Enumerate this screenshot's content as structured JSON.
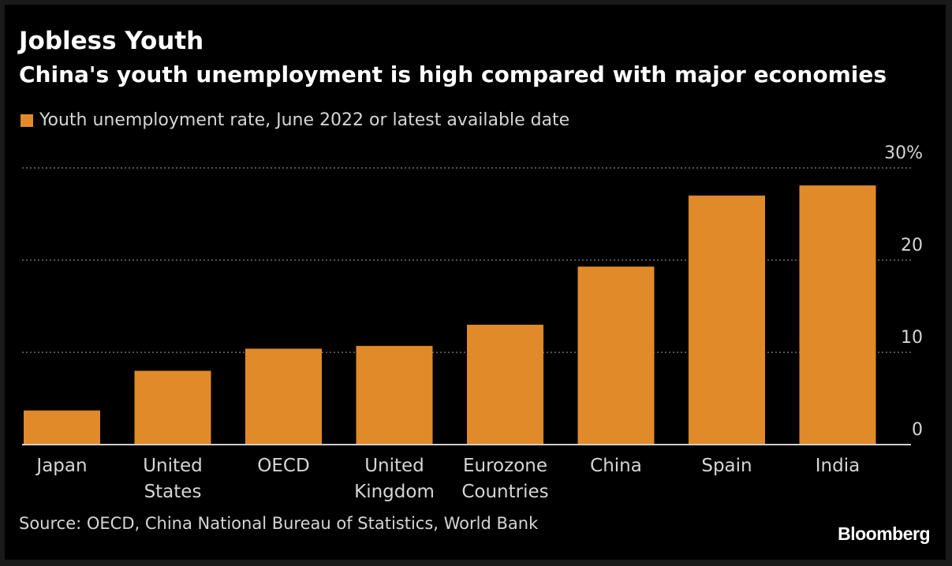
{
  "header": {
    "title": "Jobless Youth",
    "subtitle": "China's youth unemployment is high compared with major economies"
  },
  "chart_data": {
    "type": "bar",
    "categories": [
      [
        "Japan"
      ],
      [
        "United",
        "States"
      ],
      [
        "OECD"
      ],
      [
        "United",
        "Kingdom"
      ],
      [
        "Eurozone",
        "Countries"
      ],
      [
        "China"
      ],
      [
        "Spain"
      ],
      [
        "India"
      ]
    ],
    "series": [
      {
        "name": "Youth unemployment rate, June 2022 or latest available date",
        "values": [
          3.7,
          8.0,
          10.4,
          10.7,
          13.0,
          19.3,
          27.0,
          28.1
        ]
      }
    ],
    "ylim": [
      0,
      30
    ],
    "yticks": [
      0,
      10,
      20,
      30
    ],
    "ytick_labels": [
      "0",
      "10",
      "20",
      "30%"
    ],
    "y_axis_side": "right",
    "grid": true,
    "legend_position": "top-left",
    "title": "Jobless Youth",
    "subtitle": "China's youth unemployment is high compared with major economies",
    "xlabel": "",
    "ylabel": ""
  },
  "footer": {
    "source": "Source: OECD, China National Bureau of Statistics, World Bank",
    "logo_text": "Bloomberg"
  },
  "colors": {
    "background": "#000000",
    "bar": "#e08a2a",
    "text": "#ffffff",
    "muted_text": "#d6d6d6",
    "grid": "#6e6e6e",
    "baseline": "#cfcfcf"
  }
}
